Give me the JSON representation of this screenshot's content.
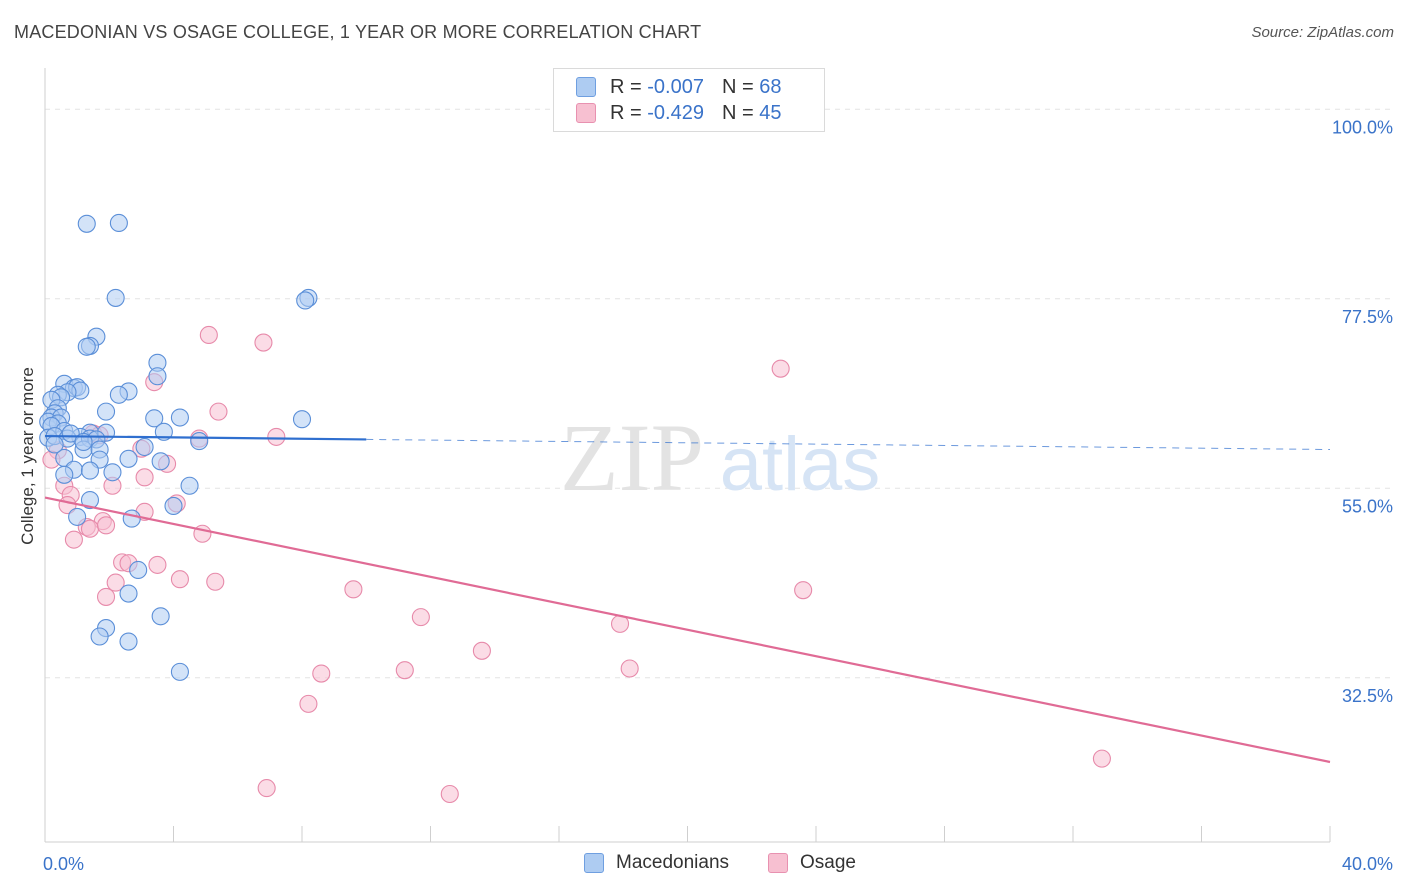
{
  "title": "MACEDONIAN VS OSAGE COLLEGE, 1 YEAR OR MORE CORRELATION CHART",
  "source": "Source: ZipAtlas.com",
  "watermark": {
    "zip": "ZIP",
    "atlas": "atlas"
  },
  "legend": {
    "r_label": "R =",
    "n_label": "N =",
    "rows": [
      {
        "r": "-0.007",
        "n": "68",
        "fill": "#aeccf2",
        "stroke": "#6f9fe0"
      },
      {
        "r": "-0.429",
        "n": "45",
        "fill": "#f7c0d1",
        "stroke": "#e891b0"
      }
    ]
  },
  "bottom_legend": [
    "Macedonians",
    "Osage"
  ],
  "colors": {
    "blue_fill": "#aeccf2",
    "blue_stroke": "#5b8fd8",
    "blue_line": "#2f6fcf",
    "pink_fill": "#f7c0d1",
    "pink_stroke": "#e78aaa",
    "pink_line": "#e06b95",
    "tick_text": "#3a73c9"
  },
  "chart_data": {
    "type": "scatter",
    "title": "MACEDONIAN VS OSAGE COLLEGE, 1 YEAR OR MORE CORRELATION CHART",
    "xlabel": "",
    "ylabel": "College, 1 year or more",
    "xlim": [
      0,
      40
    ],
    "ylim": [
      13,
      103
    ],
    "x_ticks": [
      "0.0%",
      "40.0%"
    ],
    "y_ticks": [
      {
        "value": 100.0,
        "label": "100.0%"
      },
      {
        "value": 77.5,
        "label": "77.5%"
      },
      {
        "value": 55.0,
        "label": "55.0%"
      },
      {
        "value": 32.5,
        "label": "32.5%"
      }
    ],
    "grid": true,
    "legend_position": "top-center",
    "series": [
      {
        "name": "Macedonians",
        "trend": {
          "x0": 0,
          "y0": 61.2,
          "x1": 10,
          "y1": 60.8,
          "dashed_to_x": 40,
          "dashed_to_y": 59.6
        },
        "points": [
          [
            1.3,
            86.4
          ],
          [
            2.3,
            86.5
          ],
          [
            2.2,
            77.6
          ],
          [
            8.2,
            77.6
          ],
          [
            8.1,
            77.3
          ],
          [
            1.6,
            73.0
          ],
          [
            1.4,
            71.9
          ],
          [
            1.3,
            71.8
          ],
          [
            3.5,
            69.9
          ],
          [
            3.5,
            68.3
          ],
          [
            0.6,
            67.4
          ],
          [
            0.9,
            66.9
          ],
          [
            1.0,
            67.0
          ],
          [
            1.1,
            66.6
          ],
          [
            0.7,
            66.4
          ],
          [
            0.4,
            66.1
          ],
          [
            0.5,
            65.8
          ],
          [
            0.2,
            65.5
          ],
          [
            2.6,
            66.5
          ],
          [
            2.3,
            66.1
          ],
          [
            0.4,
            64.5
          ],
          [
            1.9,
            64.1
          ],
          [
            0.3,
            63.9
          ],
          [
            0.2,
            63.4
          ],
          [
            0.5,
            63.4
          ],
          [
            0.1,
            62.9
          ],
          [
            0.4,
            62.7
          ],
          [
            3.4,
            63.3
          ],
          [
            4.2,
            63.4
          ],
          [
            8.0,
            63.2
          ],
          [
            0.2,
            62.4
          ],
          [
            0.6,
            61.8
          ],
          [
            1.4,
            61.6
          ],
          [
            1.9,
            61.6
          ],
          [
            3.7,
            61.7
          ],
          [
            0.1,
            61.0
          ],
          [
            0.3,
            61.2
          ],
          [
            1.1,
            61.1
          ],
          [
            1.4,
            60.9
          ],
          [
            1.6,
            60.8
          ],
          [
            0.7,
            60.9
          ],
          [
            4.8,
            60.6
          ],
          [
            3.1,
            59.9
          ],
          [
            1.2,
            59.6
          ],
          [
            1.7,
            59.6
          ],
          [
            0.6,
            58.6
          ],
          [
            1.7,
            58.4
          ],
          [
            2.6,
            58.5
          ],
          [
            3.6,
            58.2
          ],
          [
            0.9,
            57.2
          ],
          [
            1.4,
            57.1
          ],
          [
            2.1,
            56.9
          ],
          [
            0.6,
            56.6
          ],
          [
            4.5,
            55.3
          ],
          [
            1.4,
            53.6
          ],
          [
            4.0,
            52.9
          ],
          [
            1.0,
            51.6
          ],
          [
            2.7,
            51.4
          ],
          [
            2.9,
            45.3
          ],
          [
            2.6,
            42.5
          ],
          [
            3.6,
            39.8
          ],
          [
            1.9,
            38.4
          ],
          [
            1.7,
            37.4
          ],
          [
            2.6,
            36.8
          ],
          [
            4.2,
            33.2
          ],
          [
            0.3,
            60.2
          ],
          [
            0.8,
            61.5
          ],
          [
            1.2,
            60.5
          ]
        ]
      },
      {
        "name": "Osage",
        "trend": {
          "x0": 0,
          "y0": 53.9,
          "x1": 40,
          "y1": 22.5
        },
        "points": [
          [
            5.1,
            73.2
          ],
          [
            6.8,
            72.3
          ],
          [
            22.9,
            69.2
          ],
          [
            3.4,
            67.6
          ],
          [
            5.4,
            64.1
          ],
          [
            1.5,
            61.5
          ],
          [
            1.7,
            61.3
          ],
          [
            7.2,
            61.1
          ],
          [
            4.8,
            60.9
          ],
          [
            3.0,
            59.7
          ],
          [
            0.4,
            59.5
          ],
          [
            0.2,
            58.4
          ],
          [
            3.8,
            57.9
          ],
          [
            3.1,
            56.3
          ],
          [
            0.6,
            55.3
          ],
          [
            2.1,
            55.3
          ],
          [
            0.8,
            54.2
          ],
          [
            4.1,
            53.2
          ],
          [
            0.7,
            53.0
          ],
          [
            3.1,
            52.2
          ],
          [
            1.8,
            51.1
          ],
          [
            1.3,
            50.4
          ],
          [
            1.4,
            50.2
          ],
          [
            4.9,
            49.6
          ],
          [
            0.9,
            48.9
          ],
          [
            2.4,
            46.2
          ],
          [
            2.6,
            46.1
          ],
          [
            3.5,
            45.9
          ],
          [
            4.2,
            44.2
          ],
          [
            5.3,
            43.9
          ],
          [
            2.2,
            43.8
          ],
          [
            9.6,
            43.0
          ],
          [
            23.6,
            42.9
          ],
          [
            1.9,
            42.1
          ],
          [
            11.7,
            39.7
          ],
          [
            17.9,
            38.9
          ],
          [
            13.6,
            35.7
          ],
          [
            18.2,
            33.6
          ],
          [
            11.2,
            33.4
          ],
          [
            8.6,
            33.0
          ],
          [
            8.2,
            29.4
          ],
          [
            32.9,
            22.9
          ],
          [
            6.9,
            19.4
          ],
          [
            12.6,
            18.7
          ],
          [
            1.9,
            50.6
          ]
        ]
      }
    ]
  }
}
